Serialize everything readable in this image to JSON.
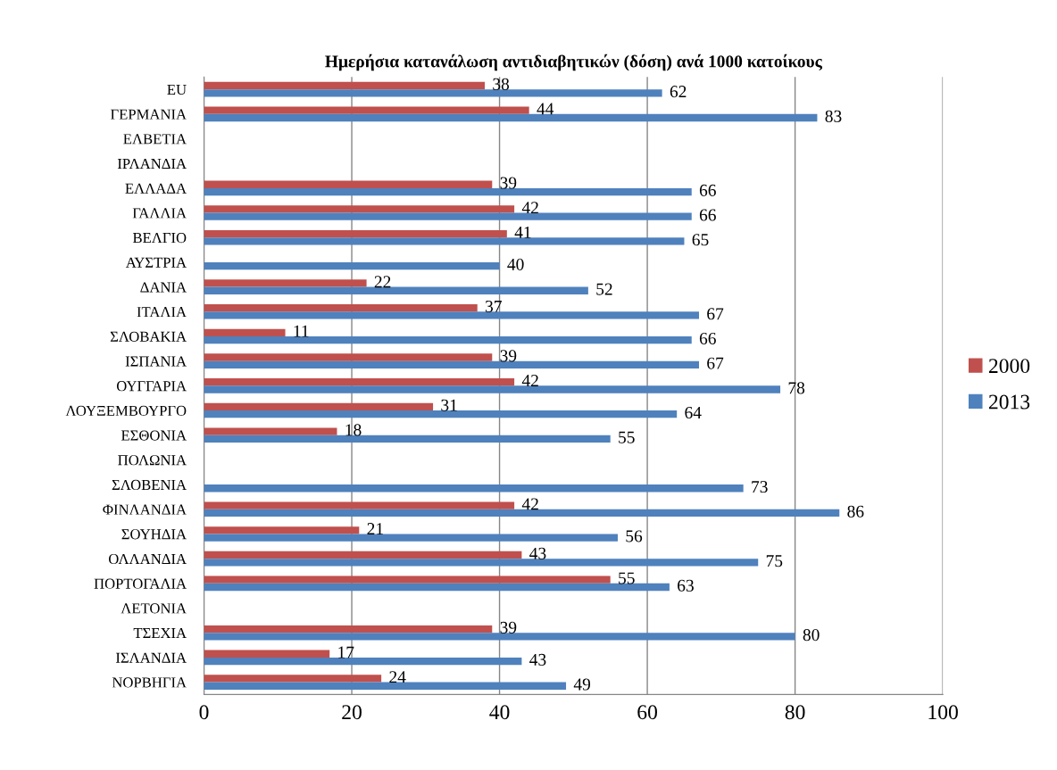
{
  "chart_data": {
    "type": "bar",
    "orientation": "horizontal",
    "title": "Ημερήσια κατανάλωση αντιδιαβητικών (δόση) ανά 1000 κατοίκους",
    "categories": [
      "EU",
      "ΓΕΡΜΑΝΙΑ",
      "ΕΛΒΕΤΙΑ",
      "ΙΡΛΑΝΔΙΑ",
      "ΕΛΛΑΔΑ",
      "ΓΑΛΛΙΑ",
      "ΒΕΛΓΙΟ",
      "ΑΥΣΤΡΙΑ",
      "ΔΑΝΙΑ",
      "ΙΤΑΛΙΑ",
      "ΣΛΟΒΑΚΙΑ",
      "ΙΣΠΑΝΙΑ",
      "ΟΥΓΓΑΡΙΑ",
      "ΛΟΥΞΕΜΒΟΥΡΓΟ",
      "ΕΣΘΟΝΙΑ",
      "ΠΟΛΩΝΙΑ",
      "ΣΛΟΒΕΝΙΑ",
      "ΦΙΝΛΑΝΔΙΑ",
      "ΣΟΥΗΔΙΑ",
      "ΟΛΛΑΝΔΙΑ",
      "ΠΟΡΤΟΓΑΛΙΑ",
      "ΛΕΤΟΝΙΑ",
      "ΤΣΕΧΙΑ",
      "ΙΣΛΑΝΔΙΑ",
      "ΝΟΡΒΗΓΙΑ"
    ],
    "series": [
      {
        "name": "2000",
        "color": "#c0504d",
        "values": [
          38,
          44,
          null,
          null,
          39,
          42,
          41,
          null,
          22,
          37,
          11,
          39,
          42,
          31,
          18,
          null,
          null,
          42,
          21,
          43,
          55,
          null,
          39,
          17,
          24
        ]
      },
      {
        "name": "2013",
        "color": "#4f81bd",
        "values": [
          62,
          83,
          null,
          null,
          66,
          66,
          65,
          40,
          52,
          67,
          66,
          67,
          78,
          64,
          55,
          null,
          73,
          86,
          56,
          75,
          63,
          null,
          80,
          43,
          49
        ]
      }
    ],
    "xlim": [
      0,
      100
    ],
    "xticks": [
      0,
      20,
      40,
      60,
      80,
      100
    ],
    "grid": "x",
    "legend": "right",
    "data_labels": true
  }
}
